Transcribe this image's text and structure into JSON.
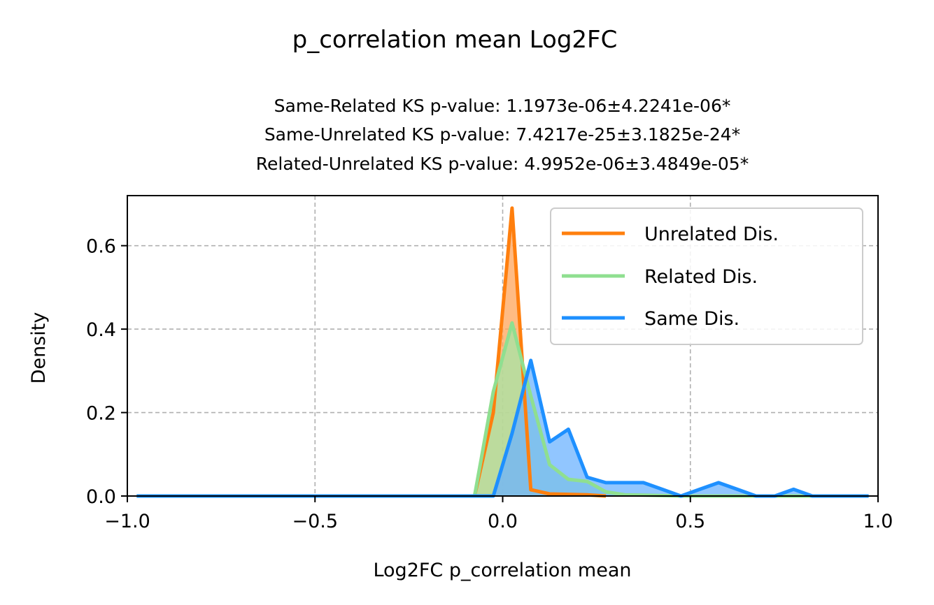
{
  "chart_data": {
    "type": "area",
    "title": "p_correlation mean Log2FC",
    "subtitle_lines": [
      "Same-Related KS p-value: 1.1973e-06±4.2241e-06*",
      "Same-Unrelated KS p-value: 7.4217e-25±3.1825e-24*",
      "Related-Unrelated KS p-value: 4.9952e-06±3.4849e-05*"
    ],
    "xlabel": "Log2FC p_correlation mean",
    "ylabel": "Density",
    "xlim": [
      -1.0,
      1.0
    ],
    "ylim": [
      0.0,
      0.72
    ],
    "xticks": [
      -1.0,
      -0.5,
      0.0,
      0.5,
      1.0
    ],
    "xtick_labels": [
      "−1.0",
      "−0.5",
      "0.0",
      "0.5",
      "1.0"
    ],
    "yticks": [
      0.0,
      0.2,
      0.4,
      0.6
    ],
    "ytick_labels": [
      "0.0",
      "0.2",
      "0.4",
      "0.6"
    ],
    "grid": true,
    "legend_position": "top-right",
    "series": [
      {
        "name": "Unrelated Dis.",
        "color": "#ff7f0e",
        "fill": "#ffa45a",
        "x": [
          -0.975,
          -0.075,
          -0.025,
          0.025,
          0.075,
          0.125,
          0.175,
          0.225,
          0.275
        ],
        "y": [
          0.0,
          0.0,
          0.2,
          0.69,
          0.015,
          0.005,
          0.004,
          0.003,
          0.0
        ]
      },
      {
        "name": "Related Dis.",
        "color": "#8fdf90",
        "fill": "#a6e5a6",
        "x": [
          -0.975,
          -0.075,
          -0.025,
          0.025,
          0.075,
          0.125,
          0.175,
          0.225,
          0.275,
          0.325,
          0.375,
          0.425,
          0.475,
          0.525,
          0.575,
          0.625,
          0.675,
          0.725,
          0.775,
          0.825,
          0.875,
          0.925,
          0.975
        ],
        "y": [
          0.0,
          0.0,
          0.25,
          0.415,
          0.24,
          0.075,
          0.04,
          0.035,
          0.01,
          0.003,
          0.002,
          0.001,
          0.0,
          0.0,
          0.0,
          0.0,
          0.0,
          0.0,
          0.0,
          0.0,
          0.0,
          0.0,
          0.0
        ]
      },
      {
        "name": "Same Dis.",
        "color": "#1e90ff",
        "fill": "#6cb3ff",
        "x": [
          -0.975,
          -0.025,
          0.025,
          0.075,
          0.125,
          0.175,
          0.225,
          0.275,
          0.325,
          0.375,
          0.425,
          0.475,
          0.525,
          0.575,
          0.625,
          0.675,
          0.725,
          0.775,
          0.825,
          0.875,
          0.925,
          0.975
        ],
        "y": [
          0.0,
          0.0,
          0.15,
          0.325,
          0.13,
          0.16,
          0.045,
          0.032,
          0.032,
          0.032,
          0.016,
          0.0,
          0.016,
          0.032,
          0.016,
          0.0,
          0.0,
          0.016,
          0.0,
          0.0,
          0.0,
          0.0
        ]
      }
    ]
  }
}
